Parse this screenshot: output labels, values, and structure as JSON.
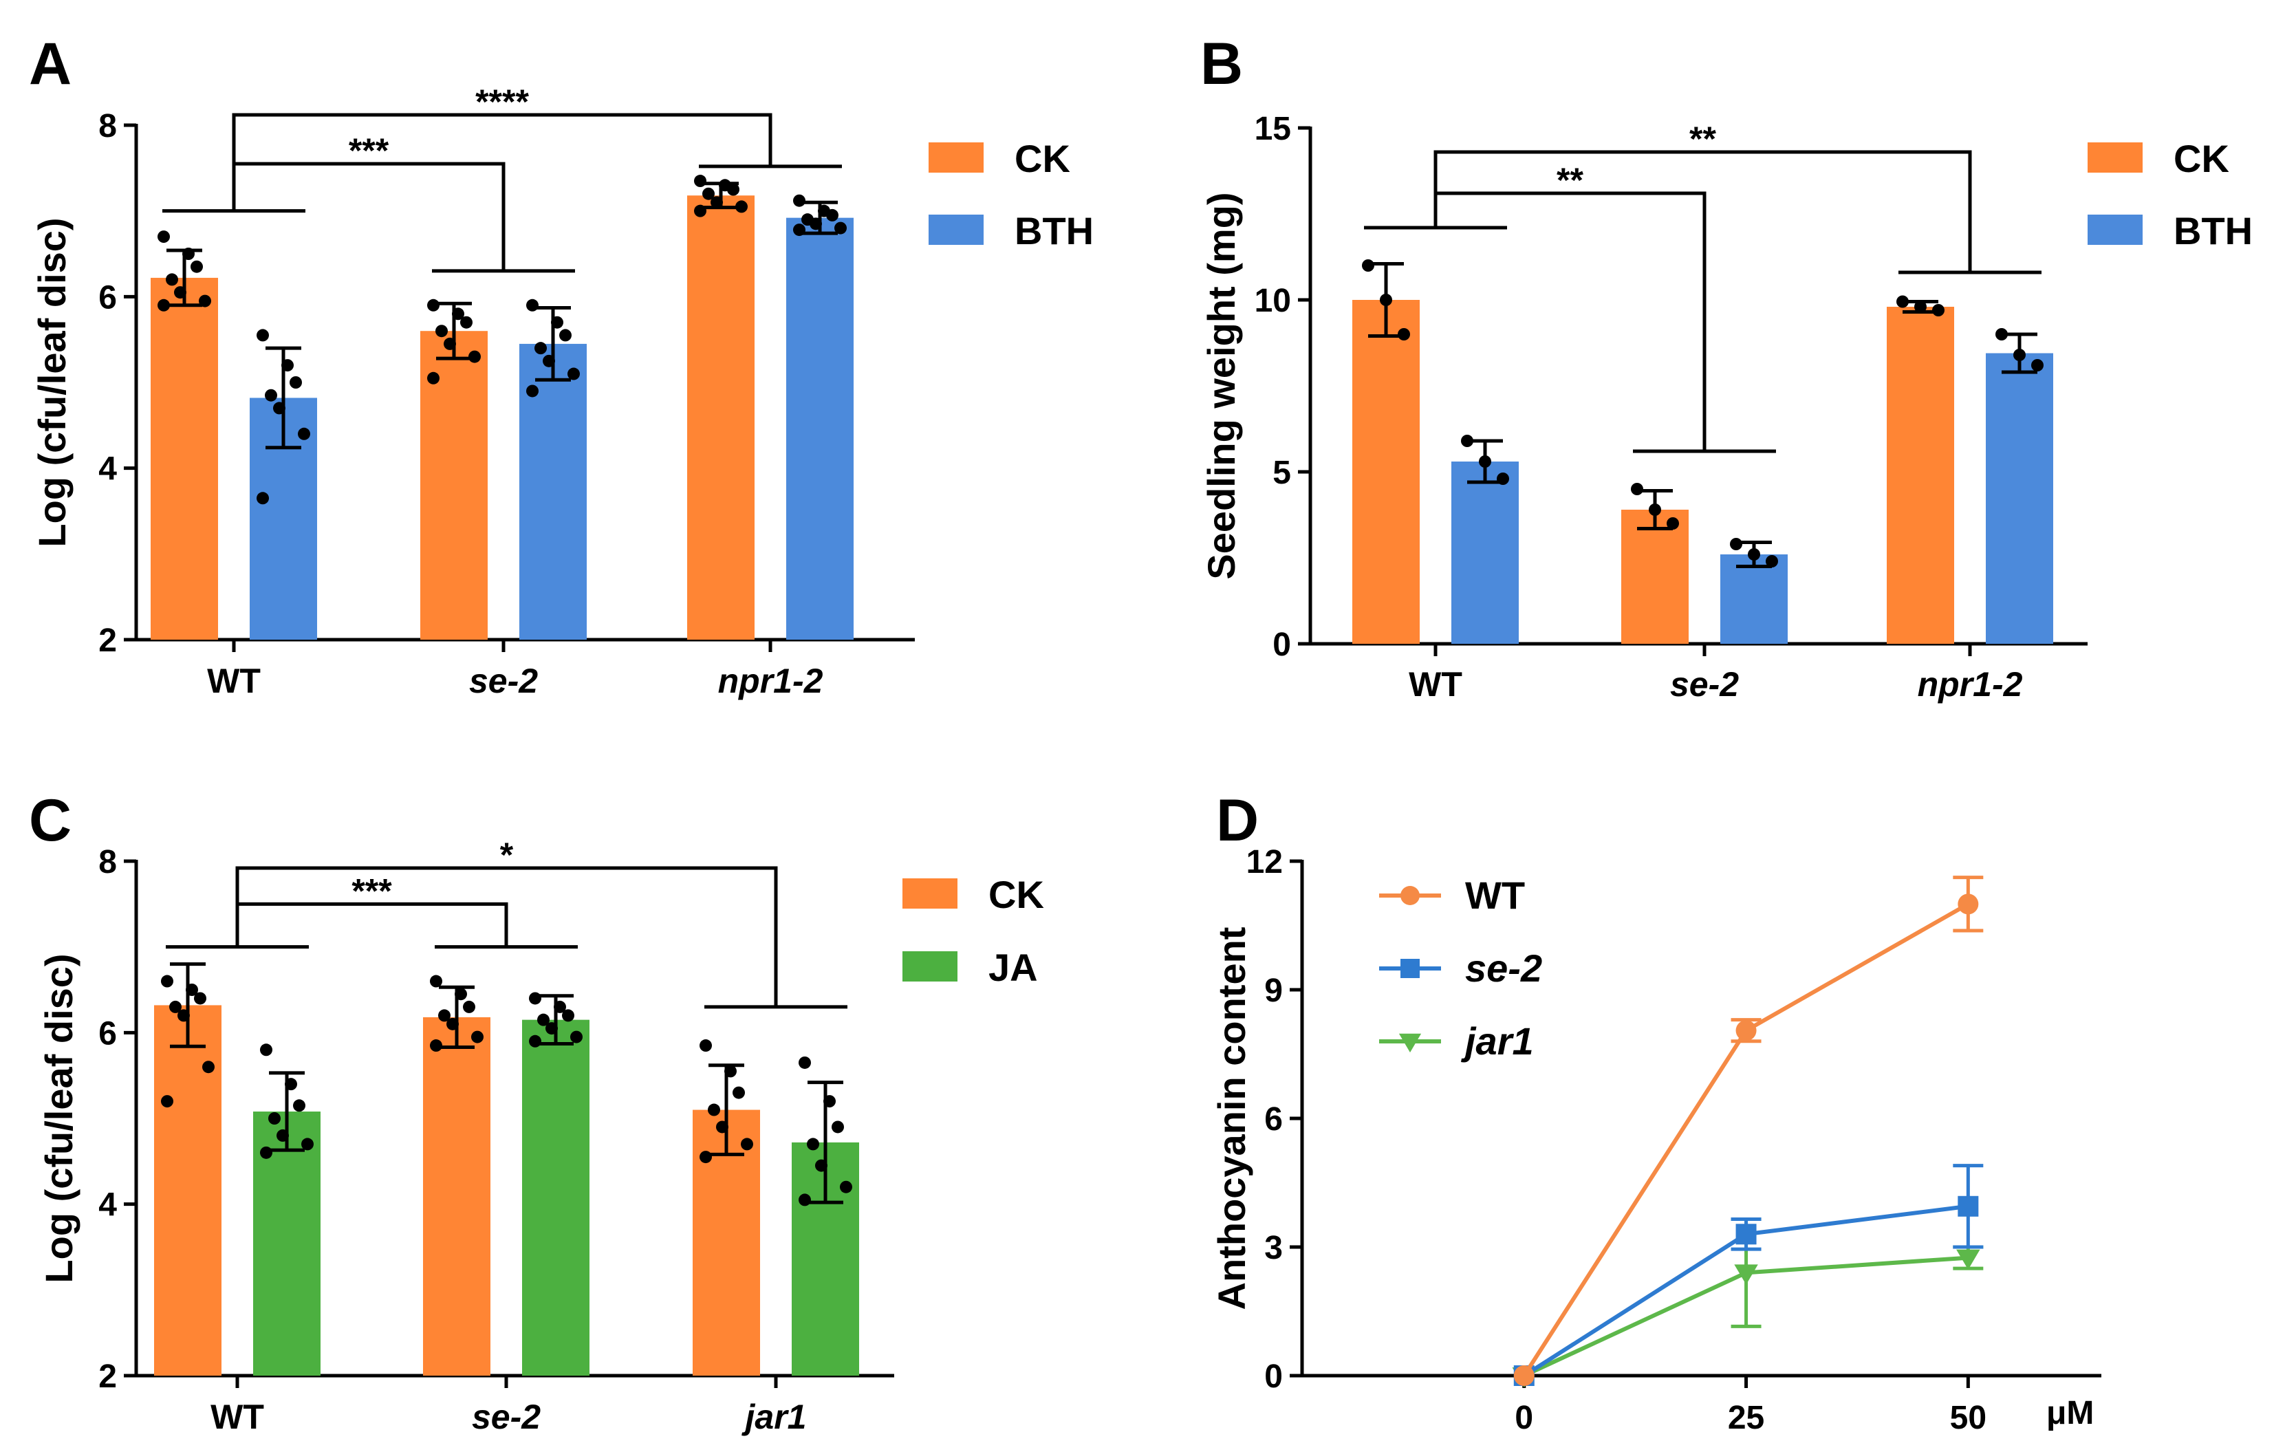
{
  "colors": {
    "CK": "#FF8534",
    "BTH": "#4C8ADB",
    "JA": "#4CB040",
    "WT": "#F58A45",
    "se-2": "#2E7BD0",
    "jar1": "#5DB84A"
  },
  "chart_data": [
    {
      "id": "A",
      "panel_label": "A",
      "type": "bar",
      "ylabel": "Log (cfu/leaf disc)",
      "ylim": [
        2,
        8
      ],
      "yticks": [
        "2",
        "4",
        "6",
        "8"
      ],
      "categories": [
        "WT",
        "se-2",
        "npr1-2"
      ],
      "categories_italic": [
        false,
        true,
        true
      ],
      "series": [
        {
          "name": "CK",
          "color_key": "CK",
          "values": [
            6.22,
            5.6,
            7.18
          ],
          "err": [
            0.32,
            0.32,
            0.14
          ],
          "points": [
            [
              6.7,
              6.5,
              6.35,
              6.2,
              6.05,
              5.95,
              5.9
            ],
            [
              5.9,
              5.8,
              5.7,
              5.6,
              5.45,
              5.3,
              5.05
            ],
            [
              7.35,
              7.3,
              7.25,
              7.2,
              7.1,
              7.05,
              7.0
            ]
          ]
        },
        {
          "name": "BTH",
          "color_key": "BTH",
          "values": [
            4.82,
            5.45,
            6.92
          ],
          "err": [
            0.58,
            0.42,
            0.18
          ],
          "points": [
            [
              5.55,
              5.2,
              5.0,
              4.85,
              4.7,
              4.4,
              3.65
            ],
            [
              5.9,
              5.7,
              5.55,
              5.4,
              5.25,
              5.1,
              4.9
            ],
            [
              7.12,
              7.0,
              6.95,
              6.9,
              6.85,
              6.8,
              6.78
            ]
          ]
        }
      ],
      "significance": [
        {
          "label": "***",
          "from": 0,
          "to": 1,
          "level": 7.55
        },
        {
          "label": "****",
          "from": 0,
          "to": 2,
          "level": 8.12
        }
      ],
      "subbracket_levels": [
        7.0,
        6.3,
        7.52
      ]
    },
    {
      "id": "B",
      "panel_label": "B",
      "type": "bar",
      "ylabel": "Seedling weight (mg)",
      "ylim": [
        0,
        15
      ],
      "yticks": [
        "0",
        "5",
        "10",
        "15"
      ],
      "categories": [
        "WT",
        "se-2",
        "npr1-2"
      ],
      "categories_italic": [
        false,
        true,
        true
      ],
      "series": [
        {
          "name": "CK",
          "color_key": "CK",
          "values": [
            10.0,
            3.9,
            9.8
          ],
          "err": [
            1.05,
            0.55,
            0.15
          ],
          "points": [
            [
              11.0,
              10.0,
              9.0
            ],
            [
              4.5,
              3.9,
              3.5
            ],
            [
              9.95,
              9.8,
              9.7
            ]
          ]
        },
        {
          "name": "BTH",
          "color_key": "BTH",
          "values": [
            5.3,
            2.6,
            8.45
          ],
          "err": [
            0.6,
            0.35,
            0.55
          ],
          "points": [
            [
              5.9,
              5.3,
              4.8
            ],
            [
              2.9,
              2.6,
              2.4
            ],
            [
              9.0,
              8.4,
              8.1
            ]
          ]
        }
      ],
      "significance": [
        {
          "label": "**",
          "from": 0,
          "to": 1,
          "level": 13.1
        },
        {
          "label": "**",
          "from": 0,
          "to": 2,
          "level": 14.3
        }
      ],
      "subbracket_levels": [
        12.1,
        5.6,
        10.8
      ]
    },
    {
      "id": "C",
      "panel_label": "C",
      "type": "bar",
      "ylabel": "Log (cfu/leaf disc)",
      "ylim": [
        2,
        8
      ],
      "yticks": [
        "2",
        "4",
        "6",
        "8"
      ],
      "categories": [
        "WT",
        "se-2",
        "jar1"
      ],
      "categories_italic": [
        false,
        true,
        true
      ],
      "series": [
        {
          "name": "CK",
          "color_key": "CK",
          "values": [
            6.32,
            6.18,
            5.1
          ],
          "err": [
            0.48,
            0.35,
            0.52
          ],
          "points": [
            [
              6.6,
              6.5,
              6.4,
              6.3,
              6.2,
              5.6,
              5.2
            ],
            [
              6.6,
              6.45,
              6.3,
              6.2,
              6.1,
              5.95,
              5.85
            ],
            [
              5.85,
              5.55,
              5.3,
              5.1,
              4.9,
              4.7,
              4.55
            ]
          ]
        },
        {
          "name": "JA",
          "color_key": "JA",
          "values": [
            5.08,
            6.15,
            4.72
          ],
          "err": [
            0.45,
            0.28,
            0.7
          ],
          "points": [
            [
              5.8,
              5.4,
              5.15,
              5.0,
              4.8,
              4.7,
              4.6
            ],
            [
              6.4,
              6.3,
              6.2,
              6.15,
              6.05,
              5.95,
              5.9
            ],
            [
              5.65,
              5.2,
              4.9,
              4.7,
              4.45,
              4.2,
              4.05
            ]
          ]
        }
      ],
      "significance": [
        {
          "label": "***",
          "from": 0,
          "to": 1,
          "level": 7.5
        },
        {
          "label": "*",
          "from": 0,
          "to": 2,
          "level": 7.92
        }
      ],
      "subbracket_levels": [
        7.0,
        7.0,
        6.3
      ]
    },
    {
      "id": "D",
      "panel_label": "D",
      "type": "line",
      "ylabel": "Anthocyanin content",
      "xlabel_unit": "μM",
      "xlim": [
        -25,
        65
      ],
      "ylim": [
        0,
        12
      ],
      "xticks": [
        "0",
        "25",
        "50"
      ],
      "yticks": [
        "0",
        "3",
        "6",
        "9",
        "12"
      ],
      "x": [
        0,
        25,
        50
      ],
      "series": [
        {
          "name": "WT",
          "color_key": "WT",
          "marker": "circle",
          "values": [
            0,
            8.05,
            11.0
          ],
          "err": [
            0,
            0.25,
            0.62
          ]
        },
        {
          "name": "se-2",
          "color_key": "se-2",
          "marker": "square",
          "values": [
            0,
            3.3,
            3.95
          ],
          "err": [
            0,
            0.35,
            0.95
          ]
        },
        {
          "name": "jar1",
          "color_key": "jar1",
          "marker": "triangle-down",
          "values": [
            0,
            2.4,
            2.75
          ],
          "err": [
            0,
            1.25,
            0.25
          ]
        }
      ]
    }
  ]
}
